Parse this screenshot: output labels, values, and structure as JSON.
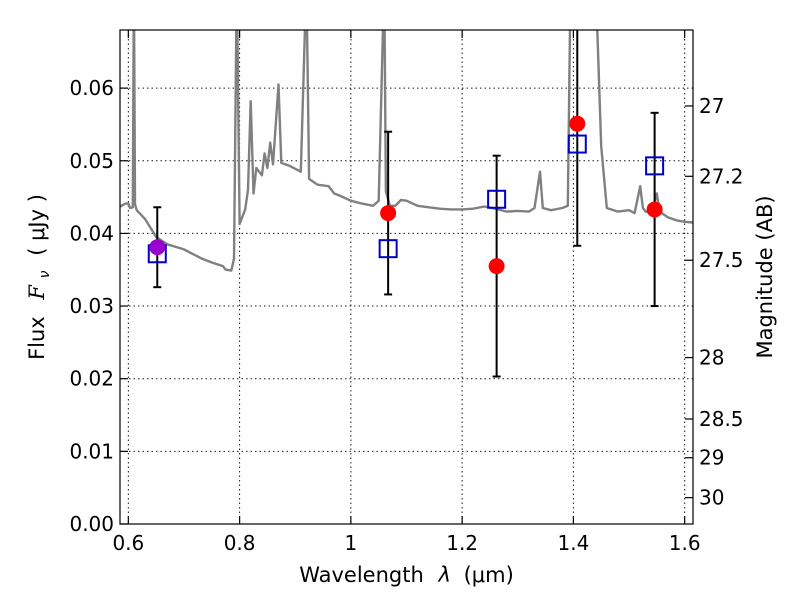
{
  "chart_data": {
    "type": "scatter",
    "xlabel_pre": "Wavelength",
    "xlabel_sym": "λ",
    "xlabel_unit": "(μm)",
    "ylabel_pre": "Flux",
    "ylabel_sym": "F",
    "ylabel_sub": "ν",
    "ylabel_unit": "( μJy )",
    "y2label": "Magnitude (AB)",
    "xlim": [
      0.585,
      1.615
    ],
    "ylim": [
      0.0,
      0.068
    ],
    "grid": true,
    "x_ticks": [
      {
        "value": 0.6,
        "label": "0.6"
      },
      {
        "value": 0.8,
        "label": "0.8"
      },
      {
        "value": 1.0,
        "label": "1"
      },
      {
        "value": 1.2,
        "label": "1.2"
      },
      {
        "value": 1.4,
        "label": "1.4"
      },
      {
        "value": 1.6,
        "label": "1.6"
      }
    ],
    "y_ticks": [
      {
        "value": 0.0,
        "label": "0.00"
      },
      {
        "value": 0.01,
        "label": "0.01"
      },
      {
        "value": 0.02,
        "label": "0.02"
      },
      {
        "value": 0.03,
        "label": "0.03"
      },
      {
        "value": 0.04,
        "label": "0.04"
      },
      {
        "value": 0.05,
        "label": "0.05"
      },
      {
        "value": 0.06,
        "label": "0.06"
      }
    ],
    "y2_ticks": [
      {
        "mag": 27,
        "label": "27"
      },
      {
        "mag": 27.2,
        "label": "27.2"
      },
      {
        "mag": 27.5,
        "label": "27.5"
      },
      {
        "mag": 28,
        "label": "28"
      },
      {
        "mag": 28.5,
        "label": "28.5"
      },
      {
        "mag": 29,
        "label": "29"
      },
      {
        "mag": 30,
        "label": "30"
      }
    ],
    "model_spectrum": {
      "color": "#808080",
      "points": [
        [
          0.585,
          0.0437
        ],
        [
          0.595,
          0.0441
        ],
        [
          0.6,
          0.0441
        ],
        [
          0.603,
          0.0435
        ],
        [
          0.608,
          0.0436
        ],
        [
          0.61,
          0.075
        ],
        [
          0.612,
          0.044
        ],
        [
          0.615,
          0.0432
        ],
        [
          0.63,
          0.042
        ],
        [
          0.65,
          0.0395
        ],
        [
          0.67,
          0.0385
        ],
        [
          0.7,
          0.0378
        ],
        [
          0.73,
          0.0366
        ],
        [
          0.75,
          0.036
        ],
        [
          0.77,
          0.0355
        ],
        [
          0.775,
          0.035
        ],
        [
          0.785,
          0.0349
        ],
        [
          0.79,
          0.0365
        ],
        [
          0.795,
          0.075
        ],
        [
          0.8,
          0.0413
        ],
        [
          0.81,
          0.0433
        ],
        [
          0.815,
          0.046
        ],
        [
          0.82,
          0.0582
        ],
        [
          0.825,
          0.0455
        ],
        [
          0.83,
          0.049
        ],
        [
          0.84,
          0.048
        ],
        [
          0.845,
          0.051
        ],
        [
          0.85,
          0.049
        ],
        [
          0.855,
          0.0525
        ],
        [
          0.86,
          0.0495
        ],
        [
          0.87,
          0.0605
        ],
        [
          0.875,
          0.0497
        ],
        [
          0.89,
          0.0493
        ],
        [
          0.91,
          0.0485
        ],
        [
          0.92,
          0.075
        ],
        [
          0.925,
          0.0475
        ],
        [
          0.94,
          0.0467
        ],
        [
          0.96,
          0.0465
        ],
        [
          0.97,
          0.0455
        ],
        [
          0.98,
          0.0452
        ],
        [
          1.0,
          0.0445
        ],
        [
          1.02,
          0.0441
        ],
        [
          1.04,
          0.0438
        ],
        [
          1.05,
          0.0445
        ],
        [
          1.06,
          0.075
        ],
        [
          1.063,
          0.0458
        ],
        [
          1.07,
          0.0438
        ],
        [
          1.08,
          0.0438
        ],
        [
          1.09,
          0.0446
        ],
        [
          1.1,
          0.0445
        ],
        [
          1.12,
          0.0438
        ],
        [
          1.14,
          0.0436
        ],
        [
          1.16,
          0.0434
        ],
        [
          1.18,
          0.0433
        ],
        [
          1.2,
          0.0433
        ],
        [
          1.22,
          0.0434
        ],
        [
          1.24,
          0.0437
        ],
        [
          1.26,
          0.0434
        ],
        [
          1.28,
          0.043
        ],
        [
          1.3,
          0.0431
        ],
        [
          1.32,
          0.043
        ],
        [
          1.33,
          0.0435
        ],
        [
          1.34,
          0.0485
        ],
        [
          1.345,
          0.0435
        ],
        [
          1.36,
          0.0432
        ],
        [
          1.38,
          0.0435
        ],
        [
          1.39,
          0.0438
        ],
        [
          1.395,
          0.075
        ],
        [
          1.41,
          0.075
        ],
        [
          1.42,
          0.075
        ],
        [
          1.43,
          0.075
        ],
        [
          1.44,
          0.075
        ],
        [
          1.45,
          0.052
        ],
        [
          1.46,
          0.0435
        ],
        [
          1.48,
          0.043
        ],
        [
          1.5,
          0.0432
        ],
        [
          1.51,
          0.0428
        ],
        [
          1.52,
          0.0465
        ],
        [
          1.525,
          0.0435
        ],
        [
          1.53,
          0.043
        ],
        [
          1.54,
          0.0428
        ],
        [
          1.55,
          0.0455
        ],
        [
          1.555,
          0.043
        ],
        [
          1.57,
          0.0422
        ],
        [
          1.585,
          0.0418
        ],
        [
          1.6,
          0.0416
        ],
        [
          1.615,
          0.0415
        ]
      ]
    },
    "observed": {
      "color": "#ff0000",
      "points": [
        {
          "x": 0.652,
          "y": 0.0381,
          "yerr": 0.0055
        },
        {
          "x": 1.067,
          "y": 0.0428,
          "yerr": 0.0112
        },
        {
          "x": 1.262,
          "y": 0.0355,
          "yerr": 0.0152
        },
        {
          "x": 1.407,
          "y": 0.0551,
          "yerr": 0.0168
        },
        {
          "x": 1.546,
          "y": 0.0433,
          "yerr": 0.0133
        }
      ]
    },
    "model_photometry": {
      "color": "#0000cc",
      "points": [
        {
          "x": 0.652,
          "y": 0.0372
        },
        {
          "x": 1.067,
          "y": 0.0379
        },
        {
          "x": 1.262,
          "y": 0.0447
        },
        {
          "x": 1.407,
          "y": 0.0523
        },
        {
          "x": 1.546,
          "y": 0.0493
        }
      ]
    },
    "overlap_color": "#9900cc"
  }
}
